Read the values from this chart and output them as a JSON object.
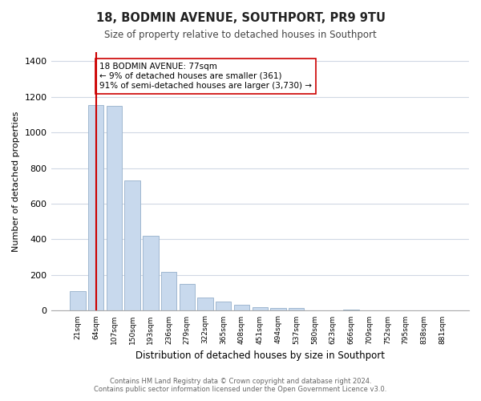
{
  "title": "18, BODMIN AVENUE, SOUTHPORT, PR9 9TU",
  "subtitle": "Size of property relative to detached houses in Southport",
  "xlabel": "Distribution of detached houses by size in Southport",
  "ylabel": "Number of detached properties",
  "bar_labels": [
    "21sqm",
    "64sqm",
    "107sqm",
    "150sqm",
    "193sqm",
    "236sqm",
    "279sqm",
    "322sqm",
    "365sqm",
    "408sqm",
    "451sqm",
    "494sqm",
    "537sqm",
    "580sqm",
    "623sqm",
    "666sqm",
    "709sqm",
    "752sqm",
    "795sqm",
    "838sqm",
    "881sqm"
  ],
  "bar_values": [
    110,
    1155,
    1150,
    730,
    420,
    220,
    150,
    75,
    50,
    35,
    20,
    15,
    15,
    0,
    0,
    5,
    0,
    0,
    0,
    0,
    0
  ],
  "bar_color": "#c8d9ed",
  "bar_edge_color": "#a0b8d0",
  "vline_x": 1,
  "vline_color": "#cc0000",
  "annotation_text": "18 BODMIN AVENUE: 77sqm\n← 9% of detached houses are smaller (361)\n91% of semi-detached houses are larger (3,730) →",
  "annotation_box_color": "#ffffff",
  "annotation_box_edge": "#cc0000",
  "ylim": [
    0,
    1450
  ],
  "yticks": [
    0,
    200,
    400,
    600,
    800,
    1000,
    1200,
    1400
  ],
  "footer_line1": "Contains HM Land Registry data © Crown copyright and database right 2024.",
  "footer_line2": "Contains public sector information licensed under the Open Government Licence v3.0.",
  "background_color": "#ffffff",
  "grid_color": "#d0d8e4"
}
